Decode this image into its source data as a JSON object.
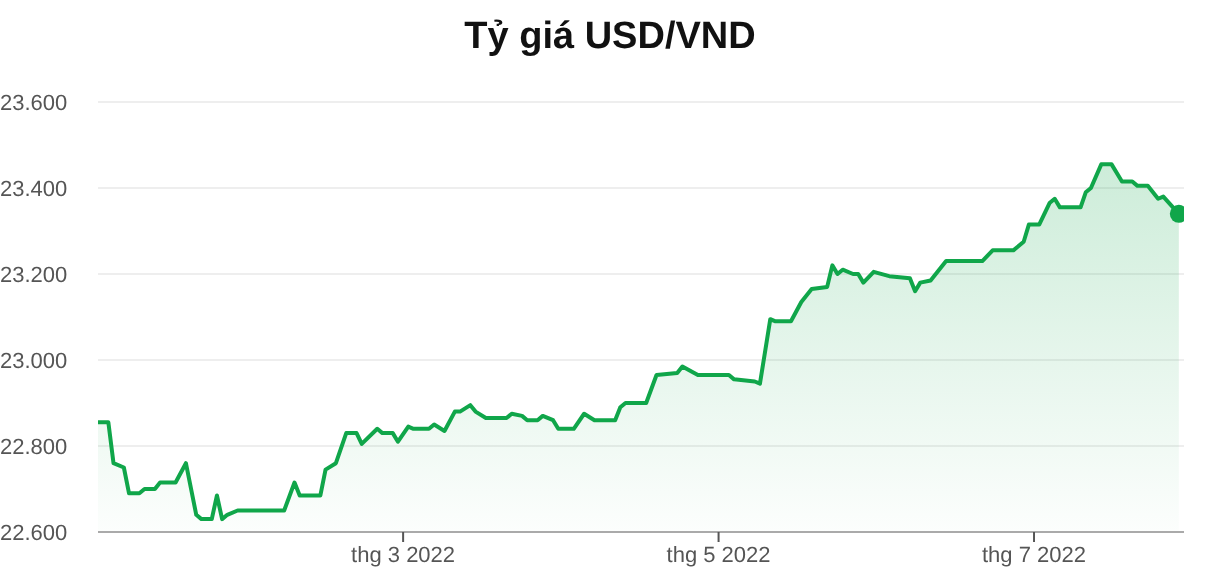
{
  "chart_data": {
    "type": "area",
    "title": "Tỷ giá USD/VND",
    "x": [
      "2022-01-01",
      "2022-01-03",
      "2022-01-04",
      "2022-01-06",
      "2022-01-07",
      "2022-01-09",
      "2022-01-10",
      "2022-01-12",
      "2022-01-13",
      "2022-01-16",
      "2022-01-18",
      "2022-01-20",
      "2022-01-21",
      "2022-01-23",
      "2022-01-24",
      "2022-01-25",
      "2022-01-26",
      "2022-01-28",
      "2022-02-06",
      "2022-02-08",
      "2022-02-09",
      "2022-02-13",
      "2022-02-14",
      "2022-02-16",
      "2022-02-18",
      "2022-02-20",
      "2022-02-21",
      "2022-02-24",
      "2022-02-25",
      "2022-02-27",
      "2022-02-28",
      "2022-03-02",
      "2022-03-03",
      "2022-03-06",
      "2022-03-07",
      "2022-03-09",
      "2022-03-11",
      "2022-03-12",
      "2022-03-14",
      "2022-03-15",
      "2022-03-17",
      "2022-03-21",
      "2022-03-22",
      "2022-03-24",
      "2022-03-25",
      "2022-03-27",
      "2022-03-28",
      "2022-03-30",
      "2022-03-31",
      "2022-04-03",
      "2022-04-05",
      "2022-04-07",
      "2022-04-11",
      "2022-04-12",
      "2022-04-13",
      "2022-04-17",
      "2022-04-19",
      "2022-04-23",
      "2022-04-24",
      "2022-04-27",
      "2022-05-03",
      "2022-05-04",
      "2022-05-08",
      "2022-05-09",
      "2022-05-11",
      "2022-05-12",
      "2022-05-15",
      "2022-05-17",
      "2022-05-19",
      "2022-05-22",
      "2022-05-23",
      "2022-05-24",
      "2022-05-25",
      "2022-05-27",
      "2022-05-28",
      "2022-05-29",
      "2022-05-31",
      "2022-06-03",
      "2022-06-07",
      "2022-06-08",
      "2022-06-09",
      "2022-06-11",
      "2022-06-14",
      "2022-06-16",
      "2022-06-21",
      "2022-06-23",
      "2022-06-27",
      "2022-06-29",
      "2022-06-30",
      "2022-07-02",
      "2022-07-04",
      "2022-07-05",
      "2022-07-06",
      "2022-07-10",
      "2022-07-11",
      "2022-07-12",
      "2022-07-14",
      "2022-07-16",
      "2022-07-18",
      "2022-07-20",
      "2022-07-21",
      "2022-07-23",
      "2022-07-25",
      "2022-07-26",
      "2022-07-29"
    ],
    "series": [
      {
        "color": "#10a64a",
        "values": [
          22855,
          22855,
          22760,
          22750,
          22690,
          22690,
          22700,
          22700,
          22715,
          22715,
          22760,
          22640,
          22630,
          22630,
          22685,
          22630,
          22640,
          22650,
          22650,
          22715,
          22685,
          22685,
          22745,
          22760,
          22830,
          22830,
          22805,
          22840,
          22830,
          22830,
          22810,
          22845,
          22840,
          22840,
          22850,
          22835,
          22880,
          22880,
          22895,
          22880,
          22865,
          22865,
          22875,
          22870,
          22860,
          22860,
          22870,
          22860,
          22840,
          22840,
          22875,
          22860,
          22860,
          22890,
          22900,
          22900,
          22965,
          22970,
          22985,
          22965,
          22965,
          22955,
          22950,
          22945,
          23095,
          23090,
          23090,
          23135,
          23165,
          23170,
          23220,
          23200,
          23210,
          23200,
          23200,
          23180,
          23205,
          23195,
          23190,
          23160,
          23180,
          23185,
          23230,
          23230,
          23230,
          23255,
          23255,
          23275,
          23315,
          23315,
          23365,
          23375,
          23355,
          23355,
          23390,
          23400,
          23455,
          23455,
          23415,
          23415,
          23405,
          23405,
          23375,
          23380,
          23340
        ]
      }
    ],
    "xlim": [
      "2022-01-01",
      "2022-07-30"
    ],
    "xticks": [
      {
        "value": "2022-03-01",
        "label": "thg 3 2022"
      },
      {
        "value": "2022-05-01",
        "label": "thg 5 2022"
      },
      {
        "value": "2022-07-01",
        "label": "thg 7 2022"
      }
    ],
    "ylim": [
      22600,
      23600
    ],
    "yticks": [
      {
        "value": 22600,
        "label": "22.600"
      },
      {
        "value": 22800,
        "label": "22.800"
      },
      {
        "value": 23000,
        "label": "23.000"
      },
      {
        "value": 23200,
        "label": "23.200"
      },
      {
        "value": 23400,
        "label": "23.400"
      },
      {
        "value": 23600,
        "label": "23.600"
      }
    ],
    "grid": "y"
  }
}
